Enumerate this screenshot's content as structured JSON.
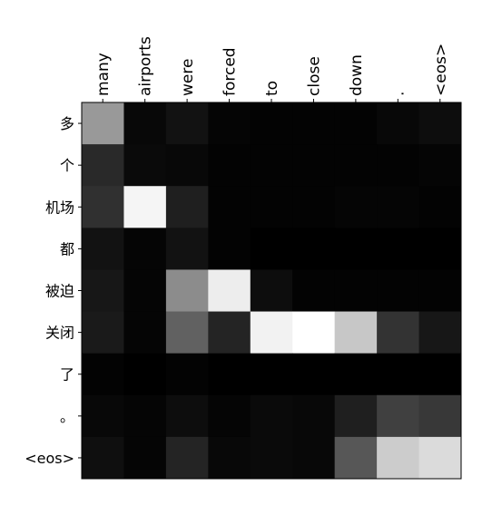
{
  "chart_data": {
    "type": "heatmap",
    "title": "",
    "xlabel": "",
    "ylabel": "",
    "x_labels": [
      "many",
      "airports",
      "were",
      "forced",
      "to",
      "close",
      "down",
      ".",
      "<eos>"
    ],
    "y_labels": [
      "多",
      "个",
      "机场",
      "都",
      "被迫",
      "关闭",
      "了",
      "。",
      "<eos>"
    ],
    "value_range": [
      0,
      1
    ],
    "colormap": "gray",
    "grid": false,
    "values": [
      [
        0.6,
        0.03,
        0.07,
        0.02,
        0.01,
        0.01,
        0.01,
        0.03,
        0.05
      ],
      [
        0.16,
        0.04,
        0.03,
        0.01,
        0.01,
        0.01,
        0.01,
        0.01,
        0.02
      ],
      [
        0.19,
        0.96,
        0.12,
        0.01,
        0.01,
        0.01,
        0.02,
        0.02,
        0.01
      ],
      [
        0.07,
        0.02,
        0.07,
        0.01,
        0.0,
        0.0,
        0.0,
        0.0,
        0.0
      ],
      [
        0.09,
        0.02,
        0.55,
        0.93,
        0.05,
        0.01,
        0.01,
        0.01,
        0.01
      ],
      [
        0.1,
        0.02,
        0.38,
        0.14,
        0.95,
        1.0,
        0.78,
        0.2,
        0.09
      ],
      [
        0.01,
        0.0,
        0.01,
        0.0,
        0.0,
        0.0,
        0.0,
        0.0,
        0.0
      ],
      [
        0.03,
        0.02,
        0.05,
        0.02,
        0.04,
        0.03,
        0.12,
        0.25,
        0.22
      ],
      [
        0.06,
        0.02,
        0.14,
        0.03,
        0.04,
        0.03,
        0.34,
        0.8,
        0.86
      ]
    ]
  }
}
